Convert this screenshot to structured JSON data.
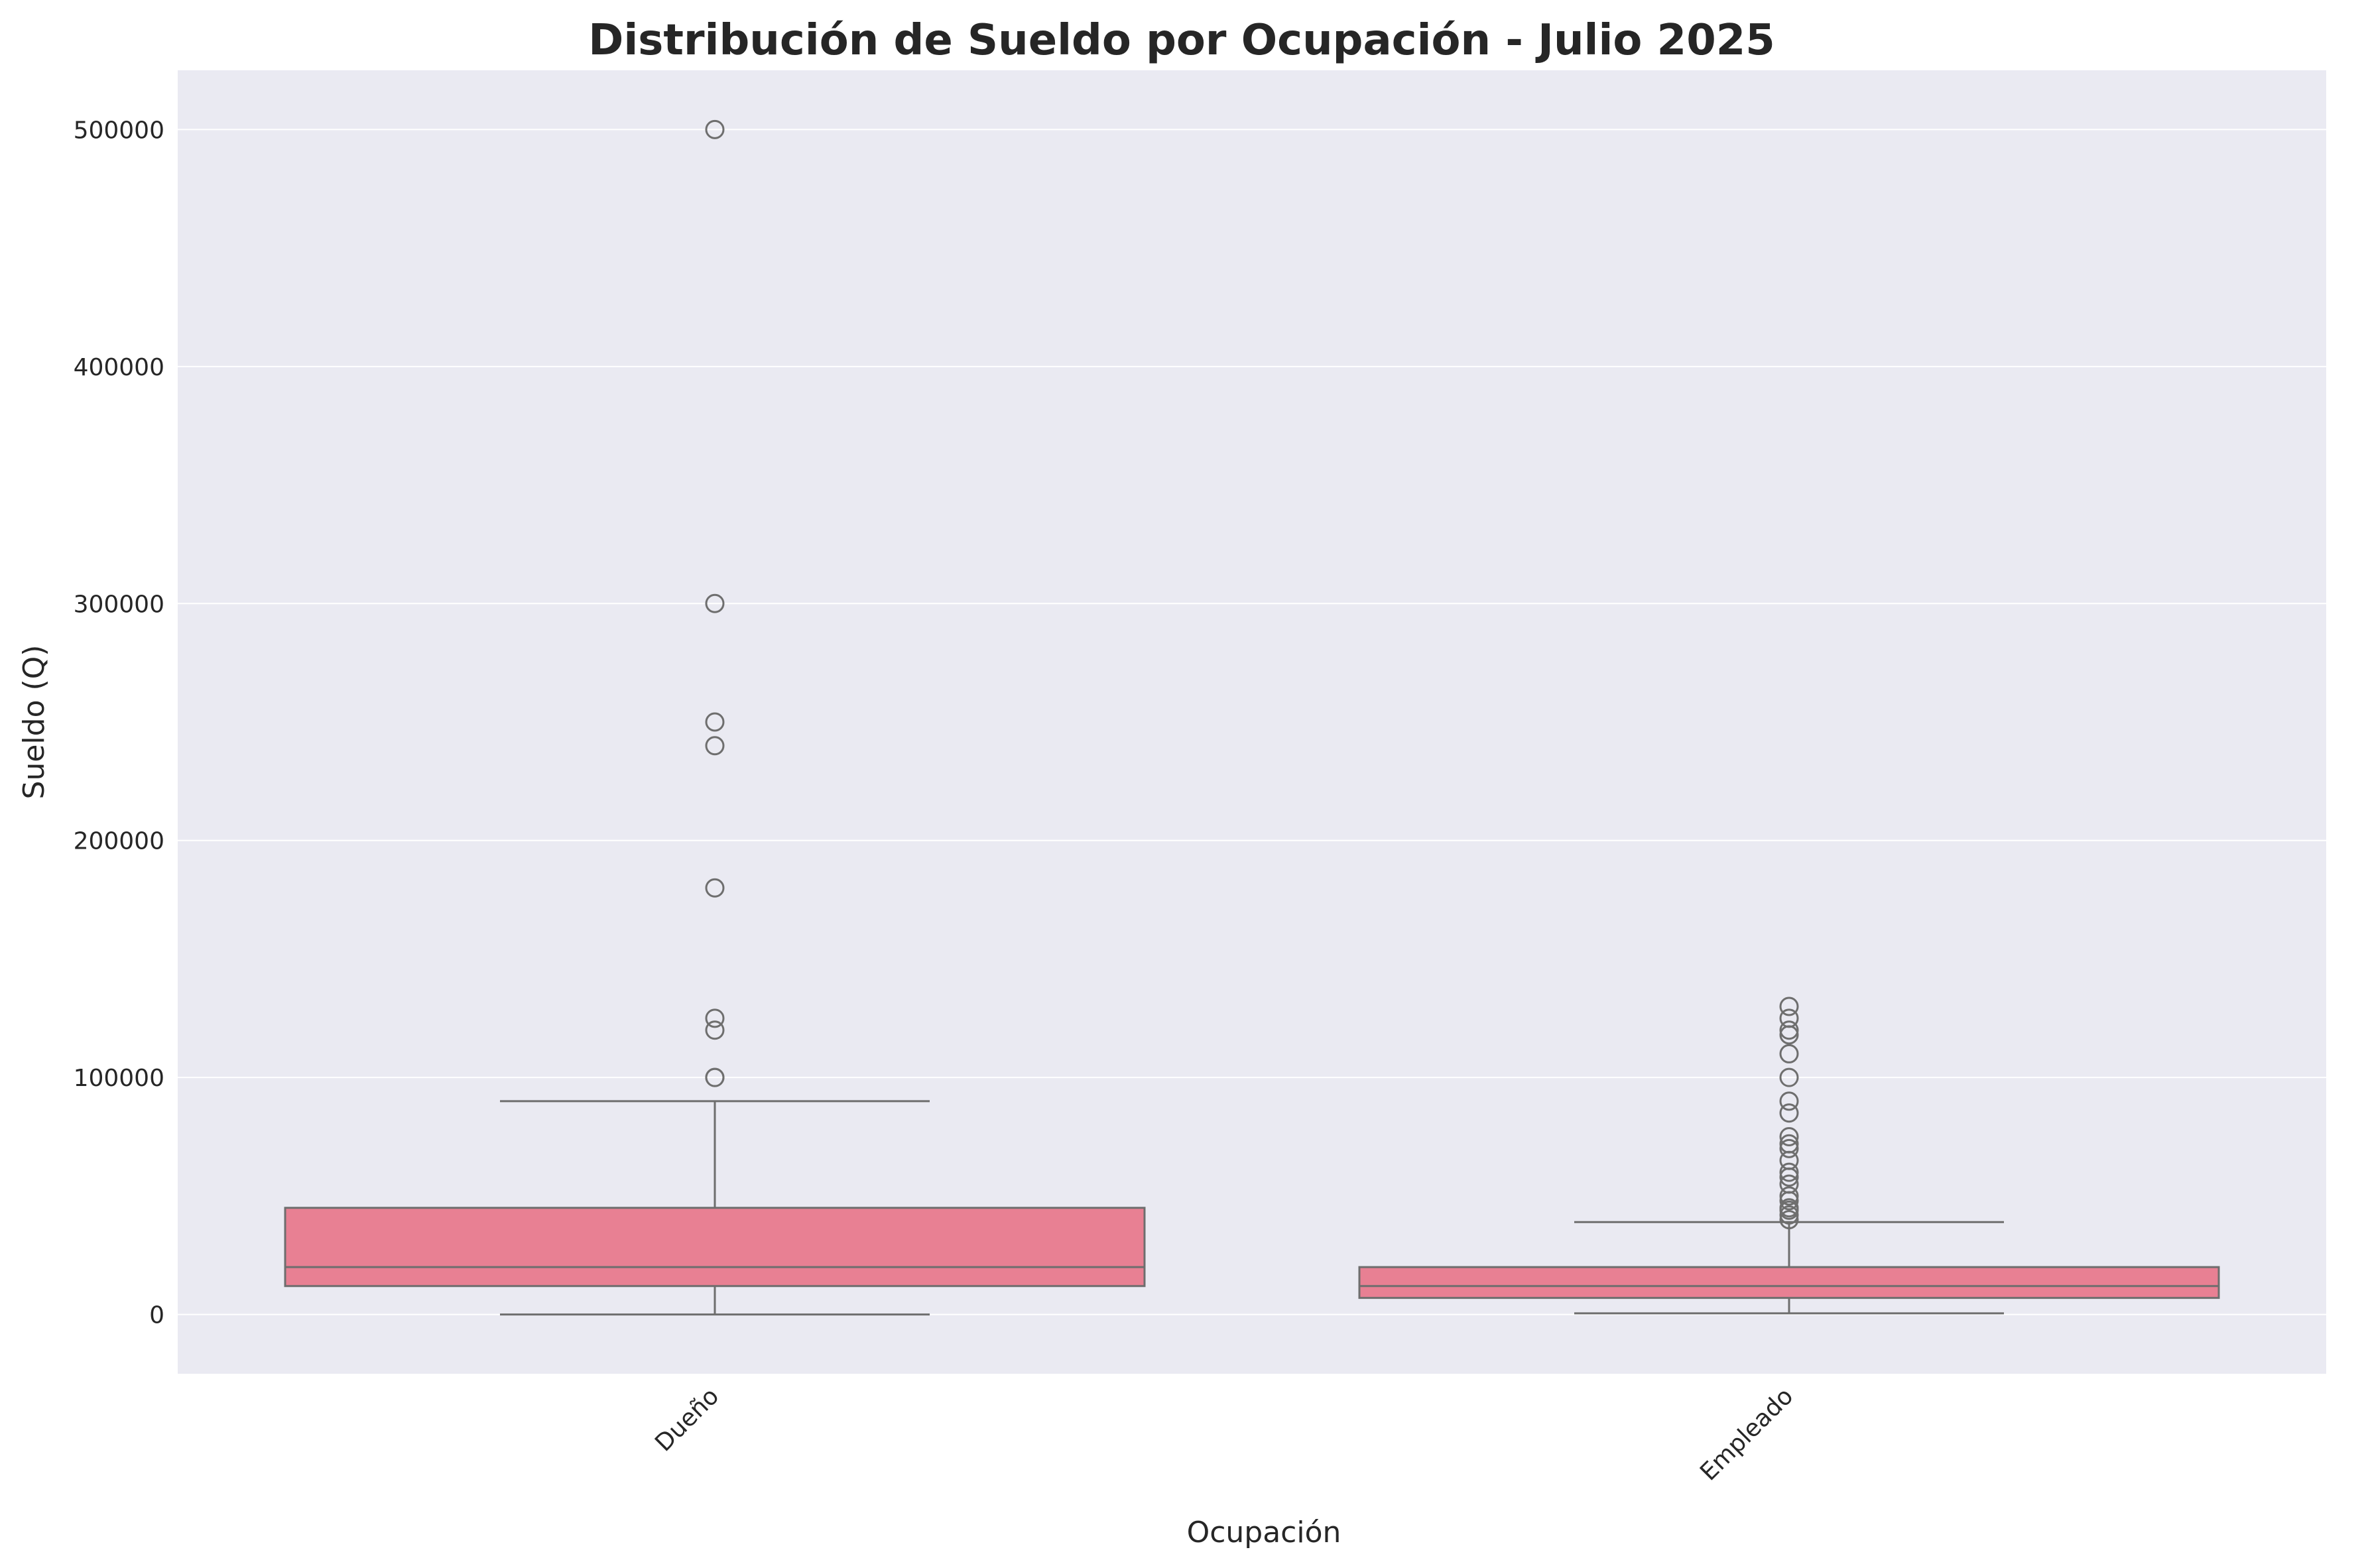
{
  "chart_data": {
    "type": "box",
    "title": "Distribución de Sueldo por Ocupación - Julio 2025",
    "xlabel": "Ocupación",
    "ylabel": "Sueldo (Q)",
    "ylim": [
      -25000,
      525000
    ],
    "yticks": [
      0,
      100000,
      200000,
      300000,
      400000,
      500000
    ],
    "grid": true,
    "legend": "none",
    "colors": {
      "background": "#eaeaf2",
      "box_fill": "#e88093",
      "line": "#6e6e6e",
      "grid": "#ffffff"
    },
    "categories": [
      "Dueño",
      "Empleado"
    ],
    "boxes": [
      {
        "name": "Dueño",
        "whisker_low": 0,
        "q1": 12000,
        "median": 20000,
        "q3": 45000,
        "whisker_high": 90000,
        "outliers": [
          100000,
          100000,
          120000,
          125000,
          180000,
          240000,
          250000,
          300000,
          500000
        ]
      },
      {
        "name": "Empleado",
        "whisker_low": 500,
        "q1": 7000,
        "median": 12000,
        "q3": 20000,
        "whisker_high": 39000,
        "outliers": [
          40000,
          42000,
          44000,
          45000,
          48000,
          50000,
          55000,
          58000,
          60000,
          65000,
          70000,
          72000,
          75000,
          85000,
          90000,
          100000,
          110000,
          118000,
          120000,
          125000,
          130000
        ]
      }
    ]
  }
}
